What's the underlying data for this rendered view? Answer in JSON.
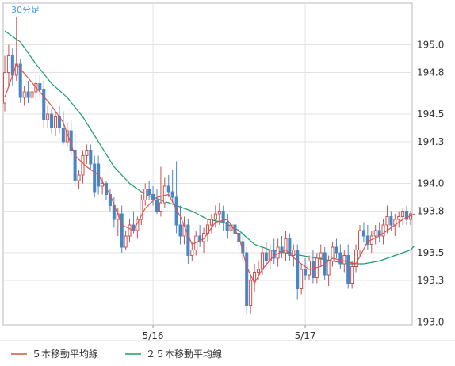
{
  "chart_data": {
    "type": "candlestick",
    "timeframe_label": "30分足",
    "ylim": [
      192.98,
      195.3
    ],
    "y_ticks": [
      "195.0",
      "194.8",
      "194.5",
      "194.3",
      "194.0",
      "193.8",
      "193.5",
      "193.3",
      "193.0"
    ],
    "x_ticks": [
      "5/16",
      "5/17"
    ],
    "grid": true,
    "legend_position": "bottom-left",
    "legend": [
      {
        "label": "５本移動平均線",
        "color": "#d9534f"
      },
      {
        "label": "２５本移動平均線",
        "color": "#1a9f6b"
      }
    ],
    "colors": {
      "up": "#c95050",
      "down": "#4a86c4",
      "ma5": "#d9534f",
      "ma25": "#1a9f6b"
    },
    "candles_ohlc": [
      [
        194.58,
        194.92,
        194.52,
        194.8
      ],
      [
        194.8,
        195.0,
        194.7,
        194.92
      ],
      [
        194.92,
        194.98,
        194.7,
        194.78
      ],
      [
        194.78,
        195.2,
        194.74,
        194.86
      ],
      [
        194.86,
        194.9,
        194.58,
        194.62
      ],
      [
        194.62,
        194.7,
        194.56,
        194.66
      ],
      [
        194.66,
        194.74,
        194.58,
        194.62
      ],
      [
        194.62,
        194.7,
        194.56,
        194.66
      ],
      [
        194.66,
        194.78,
        194.6,
        194.72
      ],
      [
        194.72,
        194.78,
        194.62,
        194.68
      ],
      [
        194.68,
        194.74,
        194.4,
        194.46
      ],
      [
        194.46,
        194.56,
        194.4,
        194.5
      ],
      [
        194.5,
        194.54,
        194.36,
        194.4
      ],
      [
        194.4,
        194.52,
        194.34,
        194.48
      ],
      [
        194.48,
        194.56,
        194.36,
        194.4
      ],
      [
        194.4,
        194.52,
        194.28,
        194.3
      ],
      [
        194.3,
        194.44,
        194.26,
        194.38
      ],
      [
        194.38,
        194.46,
        194.2,
        194.24
      ],
      [
        194.24,
        194.36,
        193.98,
        194.02
      ],
      [
        194.02,
        194.1,
        193.96,
        194.06
      ],
      [
        194.06,
        194.24,
        194.0,
        194.2
      ],
      [
        194.2,
        194.28,
        194.14,
        194.24
      ],
      [
        194.24,
        194.28,
        194.1,
        194.14
      ],
      [
        194.14,
        194.2,
        193.9,
        193.94
      ],
      [
        194.14,
        194.2,
        193.92,
        193.98
      ],
      [
        193.98,
        194.04,
        193.92,
        194.0
      ],
      [
        194.0,
        194.02,
        193.88,
        193.92
      ],
      [
        193.92,
        193.96,
        193.8,
        193.84
      ],
      [
        193.84,
        193.9,
        193.68,
        193.74
      ],
      [
        193.74,
        193.82,
        193.62,
        193.78
      ],
      [
        193.78,
        193.84,
        193.5,
        193.54
      ],
      [
        193.54,
        193.66,
        193.52,
        193.62
      ],
      [
        193.62,
        193.74,
        193.58,
        193.7
      ],
      [
        193.7,
        193.8,
        193.64,
        193.66
      ],
      [
        193.66,
        193.76,
        193.6,
        193.74
      ],
      [
        193.74,
        193.92,
        193.7,
        193.88
      ],
      [
        193.88,
        194.0,
        193.84,
        193.96
      ],
      [
        193.96,
        194.02,
        193.88,
        193.92
      ],
      [
        193.92,
        193.98,
        193.84,
        193.88
      ],
      [
        193.88,
        193.96,
        193.78,
        193.8
      ],
      [
        193.8,
        194.12,
        193.76,
        193.86
      ],
      [
        193.86,
        194.04,
        193.82,
        193.98
      ],
      [
        193.98,
        194.06,
        193.9,
        193.94
      ],
      [
        193.94,
        194.1,
        193.86,
        193.9
      ],
      [
        193.9,
        194.16,
        193.64,
        193.7
      ],
      [
        193.7,
        193.84,
        193.56,
        193.62
      ],
      [
        193.62,
        193.76,
        193.56,
        193.7
      ],
      [
        193.7,
        193.74,
        193.42,
        193.48
      ],
      [
        193.48,
        193.58,
        193.44,
        193.52
      ],
      [
        193.52,
        193.66,
        193.48,
        193.62
      ],
      [
        193.62,
        193.7,
        193.54,
        193.58
      ],
      [
        193.58,
        193.68,
        193.5,
        193.64
      ],
      [
        193.64,
        193.74,
        193.58,
        193.7
      ],
      [
        193.7,
        193.78,
        193.64,
        193.74
      ],
      [
        193.74,
        193.84,
        193.68,
        193.78
      ],
      [
        193.78,
        193.86,
        193.7,
        193.8
      ],
      [
        193.8,
        193.84,
        193.66,
        193.72
      ],
      [
        193.72,
        193.78,
        193.6,
        193.66
      ],
      [
        193.66,
        193.74,
        193.56,
        193.7
      ],
      [
        193.7,
        193.76,
        193.6,
        193.64
      ],
      [
        193.64,
        193.7,
        193.52,
        193.58
      ],
      [
        193.58,
        193.66,
        193.44,
        193.5
      ],
      [
        193.5,
        193.54,
        193.06,
        193.12
      ],
      [
        193.12,
        193.34,
        193.06,
        193.3
      ],
      [
        193.3,
        193.42,
        193.22,
        193.36
      ],
      [
        193.36,
        193.44,
        193.3,
        193.38
      ],
      [
        193.38,
        193.54,
        193.34,
        193.5
      ],
      [
        193.5,
        193.58,
        193.4,
        193.44
      ],
      [
        193.44,
        193.56,
        193.38,
        193.52
      ],
      [
        193.52,
        193.6,
        193.42,
        193.46
      ],
      [
        193.46,
        193.6,
        193.4,
        193.54
      ],
      [
        193.54,
        193.62,
        193.46,
        193.5
      ],
      [
        193.5,
        193.66,
        193.44,
        193.6
      ],
      [
        193.6,
        193.64,
        193.44,
        193.48
      ],
      [
        193.48,
        193.56,
        193.4,
        193.52
      ],
      [
        193.52,
        193.56,
        193.16,
        193.24
      ],
      [
        193.24,
        193.42,
        193.2,
        193.38
      ],
      [
        193.38,
        193.46,
        193.3,
        193.34
      ],
      [
        193.34,
        193.48,
        193.3,
        193.44
      ],
      [
        193.44,
        193.52,
        193.28,
        193.32
      ],
      [
        193.32,
        193.5,
        193.28,
        193.46
      ],
      [
        193.46,
        193.56,
        193.4,
        193.5
      ],
      [
        193.5,
        193.54,
        193.3,
        193.34
      ],
      [
        193.34,
        193.48,
        193.26,
        193.44
      ],
      [
        193.44,
        193.58,
        193.4,
        193.54
      ],
      [
        193.54,
        193.6,
        193.46,
        193.5
      ],
      [
        193.5,
        193.56,
        193.38,
        193.42
      ],
      [
        193.42,
        193.52,
        193.36,
        193.48
      ],
      [
        193.48,
        193.56,
        193.24,
        193.28
      ],
      [
        193.28,
        193.44,
        193.24,
        193.4
      ],
      [
        193.4,
        193.56,
        193.36,
        193.52
      ],
      [
        193.52,
        193.7,
        193.48,
        193.66
      ],
      [
        193.66,
        193.72,
        193.58,
        193.62
      ],
      [
        193.62,
        193.7,
        193.52,
        193.56
      ],
      [
        193.56,
        193.66,
        193.5,
        193.62
      ],
      [
        193.62,
        193.7,
        193.56,
        193.66
      ],
      [
        193.66,
        193.72,
        193.58,
        193.62
      ],
      [
        193.62,
        193.74,
        193.56,
        193.7
      ],
      [
        193.7,
        193.84,
        193.64,
        193.76
      ],
      [
        193.76,
        193.8,
        193.66,
        193.7
      ],
      [
        193.7,
        193.78,
        193.62,
        193.74
      ],
      [
        193.74,
        193.8,
        193.68,
        193.76
      ],
      [
        193.76,
        193.82,
        193.7,
        193.8
      ],
      [
        193.8,
        193.84,
        193.7,
        193.74
      ],
      [
        193.74,
        193.8,
        193.7,
        193.78
      ]
    ],
    "ma5": [
      [
        0,
        194.62
      ],
      [
        3,
        194.86
      ],
      [
        6,
        194.76
      ],
      [
        9,
        194.66
      ],
      [
        12,
        194.56
      ],
      [
        15,
        194.44
      ],
      [
        18,
        194.2
      ],
      [
        21,
        194.12
      ],
      [
        24,
        194.06
      ],
      [
        27,
        193.92
      ],
      [
        30,
        193.7
      ],
      [
        33,
        193.66
      ],
      [
        36,
        193.82
      ],
      [
        39,
        193.9
      ],
      [
        42,
        193.92
      ],
      [
        45,
        193.76
      ],
      [
        48,
        193.56
      ],
      [
        51,
        193.6
      ],
      [
        54,
        193.72
      ],
      [
        57,
        193.74
      ],
      [
        60,
        193.62
      ],
      [
        62,
        193.4
      ],
      [
        64,
        193.28
      ],
      [
        66,
        193.38
      ],
      [
        69,
        193.48
      ],
      [
        72,
        193.52
      ],
      [
        75,
        193.44
      ],
      [
        78,
        193.38
      ],
      [
        81,
        193.4
      ],
      [
        84,
        193.46
      ],
      [
        87,
        193.44
      ],
      [
        90,
        193.42
      ],
      [
        93,
        193.58
      ],
      [
        96,
        193.62
      ],
      [
        99,
        193.68
      ],
      [
        102,
        193.74
      ],
      [
        105,
        193.78
      ]
    ],
    "ma25": [
      [
        0,
        195.1
      ],
      [
        4,
        195.02
      ],
      [
        8,
        194.86
      ],
      [
        12,
        194.72
      ],
      [
        16,
        194.62
      ],
      [
        20,
        194.48
      ],
      [
        24,
        194.3
      ],
      [
        28,
        194.12
      ],
      [
        32,
        194.0
      ],
      [
        36,
        193.92
      ],
      [
        40,
        193.88
      ],
      [
        44,
        193.84
      ],
      [
        48,
        193.8
      ],
      [
        52,
        193.74
      ],
      [
        56,
        193.72
      ],
      [
        60,
        193.66
      ],
      [
        64,
        193.56
      ],
      [
        68,
        193.52
      ],
      [
        72,
        193.5
      ],
      [
        76,
        193.48
      ],
      [
        80,
        193.46
      ],
      [
        84,
        193.44
      ],
      [
        88,
        193.42
      ],
      [
        92,
        193.42
      ],
      [
        96,
        193.44
      ],
      [
        100,
        193.48
      ],
      [
        104,
        193.52
      ],
      [
        105,
        193.55
      ]
    ]
  }
}
